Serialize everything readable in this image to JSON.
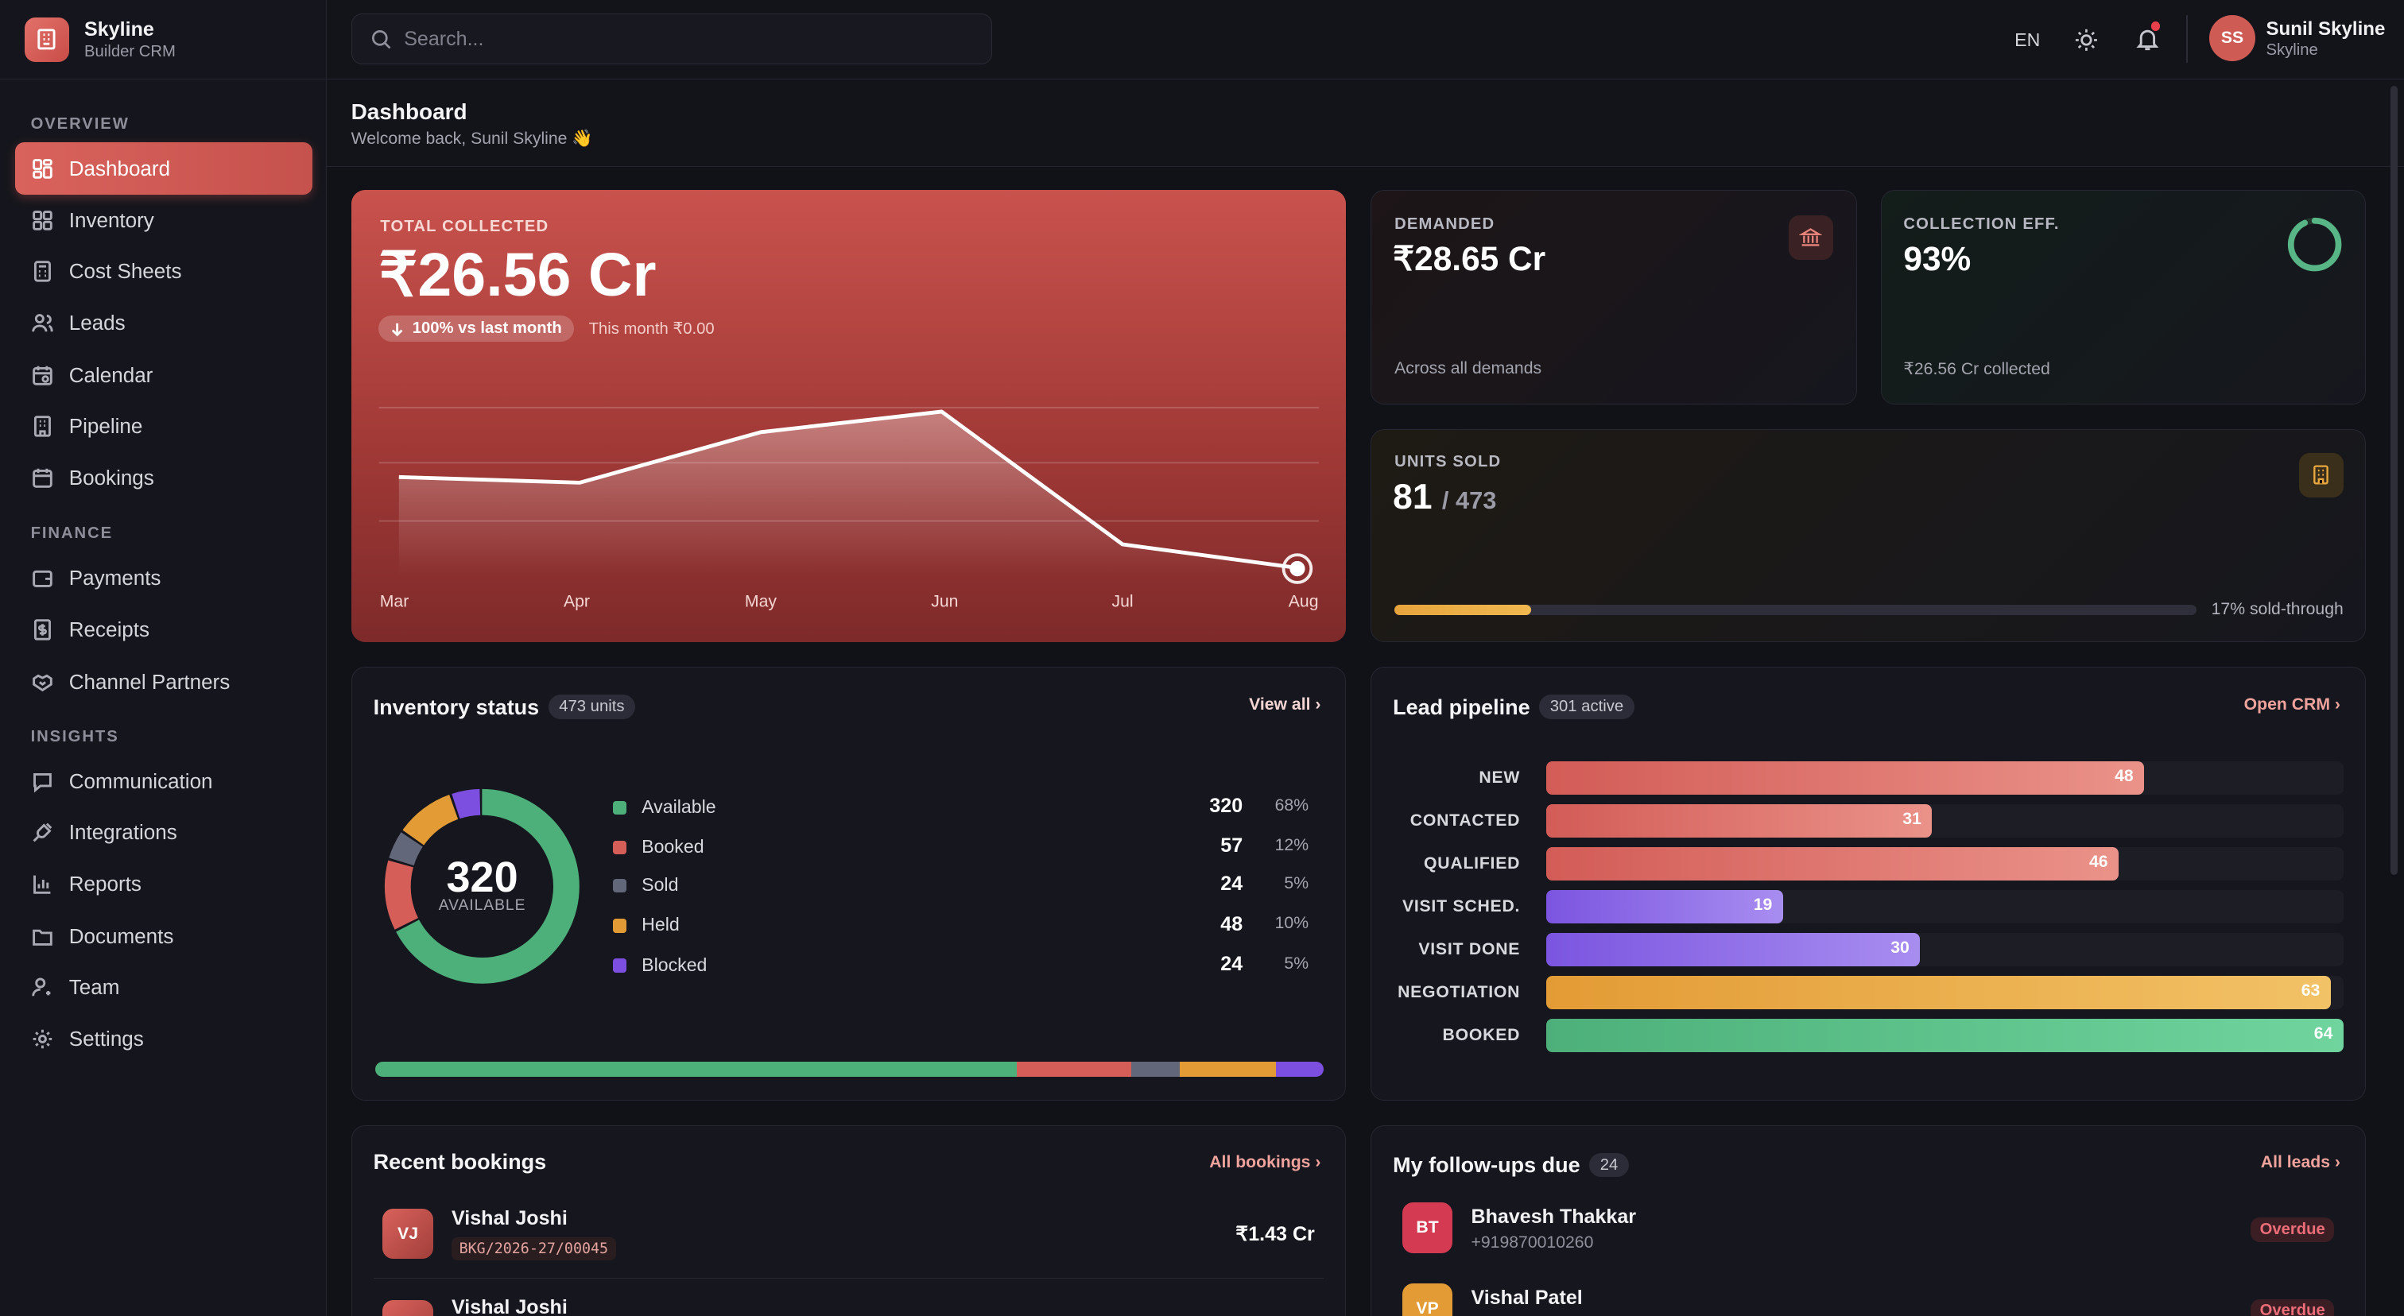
{
  "brand": {
    "name": "Skyline",
    "sub": "Builder CRM"
  },
  "sidebar": {
    "sections": [
      "OVERVIEW",
      "FINANCE",
      "INSIGHTS"
    ],
    "items": [
      {
        "label": "Dashboard",
        "icon": "dashboard-icon"
      },
      {
        "label": "Inventory",
        "icon": "grid-icon"
      },
      {
        "label": "Cost Sheets",
        "icon": "calculator-icon"
      },
      {
        "label": "Leads",
        "icon": "users-icon"
      },
      {
        "label": "Calendar",
        "icon": "calendar-icon"
      },
      {
        "label": "Pipeline",
        "icon": "building-icon"
      },
      {
        "label": "Bookings",
        "icon": "calendar-check-icon"
      },
      {
        "label": "Payments",
        "icon": "wallet-icon"
      },
      {
        "label": "Receipts",
        "icon": "receipt-icon"
      },
      {
        "label": "Channel Partners",
        "icon": "handshake-icon"
      },
      {
        "label": "Communication",
        "icon": "message-icon"
      },
      {
        "label": "Integrations",
        "icon": "plug-icon"
      },
      {
        "label": "Reports",
        "icon": "bar-chart-icon"
      },
      {
        "label": "Documents",
        "icon": "folder-icon"
      },
      {
        "label": "Team",
        "icon": "user-cog-icon"
      },
      {
        "label": "Settings",
        "icon": "gear-icon"
      }
    ]
  },
  "topbar": {
    "search_placeholder": "Search...",
    "lang": "EN",
    "user_initials": "SS",
    "user_name": "Sunil Skyline",
    "user_org": "Skyline"
  },
  "header": {
    "title": "Dashboard",
    "subtitle": "Welcome back, Sunil Skyline 👋"
  },
  "total": {
    "label": "TOTAL COLLECTED",
    "value": "₹26.56 Cr",
    "badge": "100% vs last month",
    "month": "This month ₹0.00"
  },
  "chart_data": {
    "type": "area",
    "x": [
      "Mar",
      "Apr",
      "May",
      "Jun",
      "Jul",
      "Aug"
    ],
    "values": [
      0.53,
      0.5,
      0.77,
      0.88,
      0.17,
      0.04
    ],
    "ylim": [
      0,
      1
    ]
  },
  "demanded": {
    "label": "DEMANDED",
    "value": "₹28.65 Cr",
    "note": "Across all demands"
  },
  "efficiency": {
    "label": "COLLECTION EFF.",
    "value": "93%",
    "note": "₹26.56 Cr collected",
    "ring_fraction": 0.93
  },
  "units": {
    "label": "UNITS SOLD",
    "sold": "81",
    "total": "/ 473",
    "note": "17% sold-through",
    "fraction": 0.17
  },
  "inventory": {
    "title": "Inventory status",
    "pill": "473 units",
    "link": "View all",
    "center_value": "320",
    "center_label": "AVAILABLE",
    "rows": [
      {
        "name": "Available",
        "value": "320",
        "pct": "68%",
        "color": "#4db07a",
        "n": 320
      },
      {
        "name": "Booked",
        "value": "57",
        "pct": "12%",
        "color": "#d65e59",
        "n": 57
      },
      {
        "name": "Sold",
        "value": "24",
        "pct": "5%",
        "color": "#62677a",
        "n": 24
      },
      {
        "name": "Held",
        "value": "48",
        "pct": "10%",
        "color": "#e39b35",
        "n": 48
      },
      {
        "name": "Blocked",
        "value": "24",
        "pct": "5%",
        "color": "#7c4fe0",
        "n": 24
      }
    ]
  },
  "pipeline": {
    "title": "Lead pipeline",
    "pill": "301 active",
    "link": "Open CRM",
    "rows": [
      {
        "stage": "NEW",
        "value": "48",
        "fraction": 0.75,
        "c1": "#d35c57",
        "c2": "#ea9289"
      },
      {
        "stage": "CONTACTED",
        "value": "31",
        "fraction": 0.484,
        "c1": "#d35c57",
        "c2": "#ea9289"
      },
      {
        "stage": "QUALIFIED",
        "value": "46",
        "fraction": 0.718,
        "c1": "#d35c57",
        "c2": "#ea9289"
      },
      {
        "stage": "VISIT SCHED.",
        "value": "19",
        "fraction": 0.297,
        "c1": "#7b55e0",
        "c2": "#a88df0"
      },
      {
        "stage": "VISIT DONE",
        "value": "30",
        "fraction": 0.469,
        "c1": "#7b55e0",
        "c2": "#a88df0"
      },
      {
        "stage": "NEGOTIATION",
        "value": "63",
        "fraction": 0.984,
        "c1": "#e39b35",
        "c2": "#f2c266"
      },
      {
        "stage": "BOOKED",
        "value": "64",
        "fraction": 1.0,
        "c1": "#4db07a",
        "c2": "#6fd49d"
      }
    ]
  },
  "bookings": {
    "title": "Recent bookings",
    "link": "All bookings",
    "items": [
      {
        "initials": "VJ",
        "name": "Vishal Joshi",
        "code": "BKG/2026-27/00045",
        "amount": "₹1.43 Cr"
      },
      {
        "initials": "",
        "name": "Vishal Joshi",
        "code": "",
        "amount": ""
      }
    ]
  },
  "followups": {
    "title": "My follow-ups due",
    "pill": "24",
    "link": "All leads",
    "items": [
      {
        "initials": "BT",
        "name": "Bhavesh Thakkar",
        "phone": "+919870010260",
        "status": "Overdue",
        "color": "#d43b52"
      },
      {
        "initials": "VP",
        "name": "Vishal Patel",
        "phone": "",
        "status": "Overdue",
        "color": "#e39b35"
      }
    ]
  }
}
